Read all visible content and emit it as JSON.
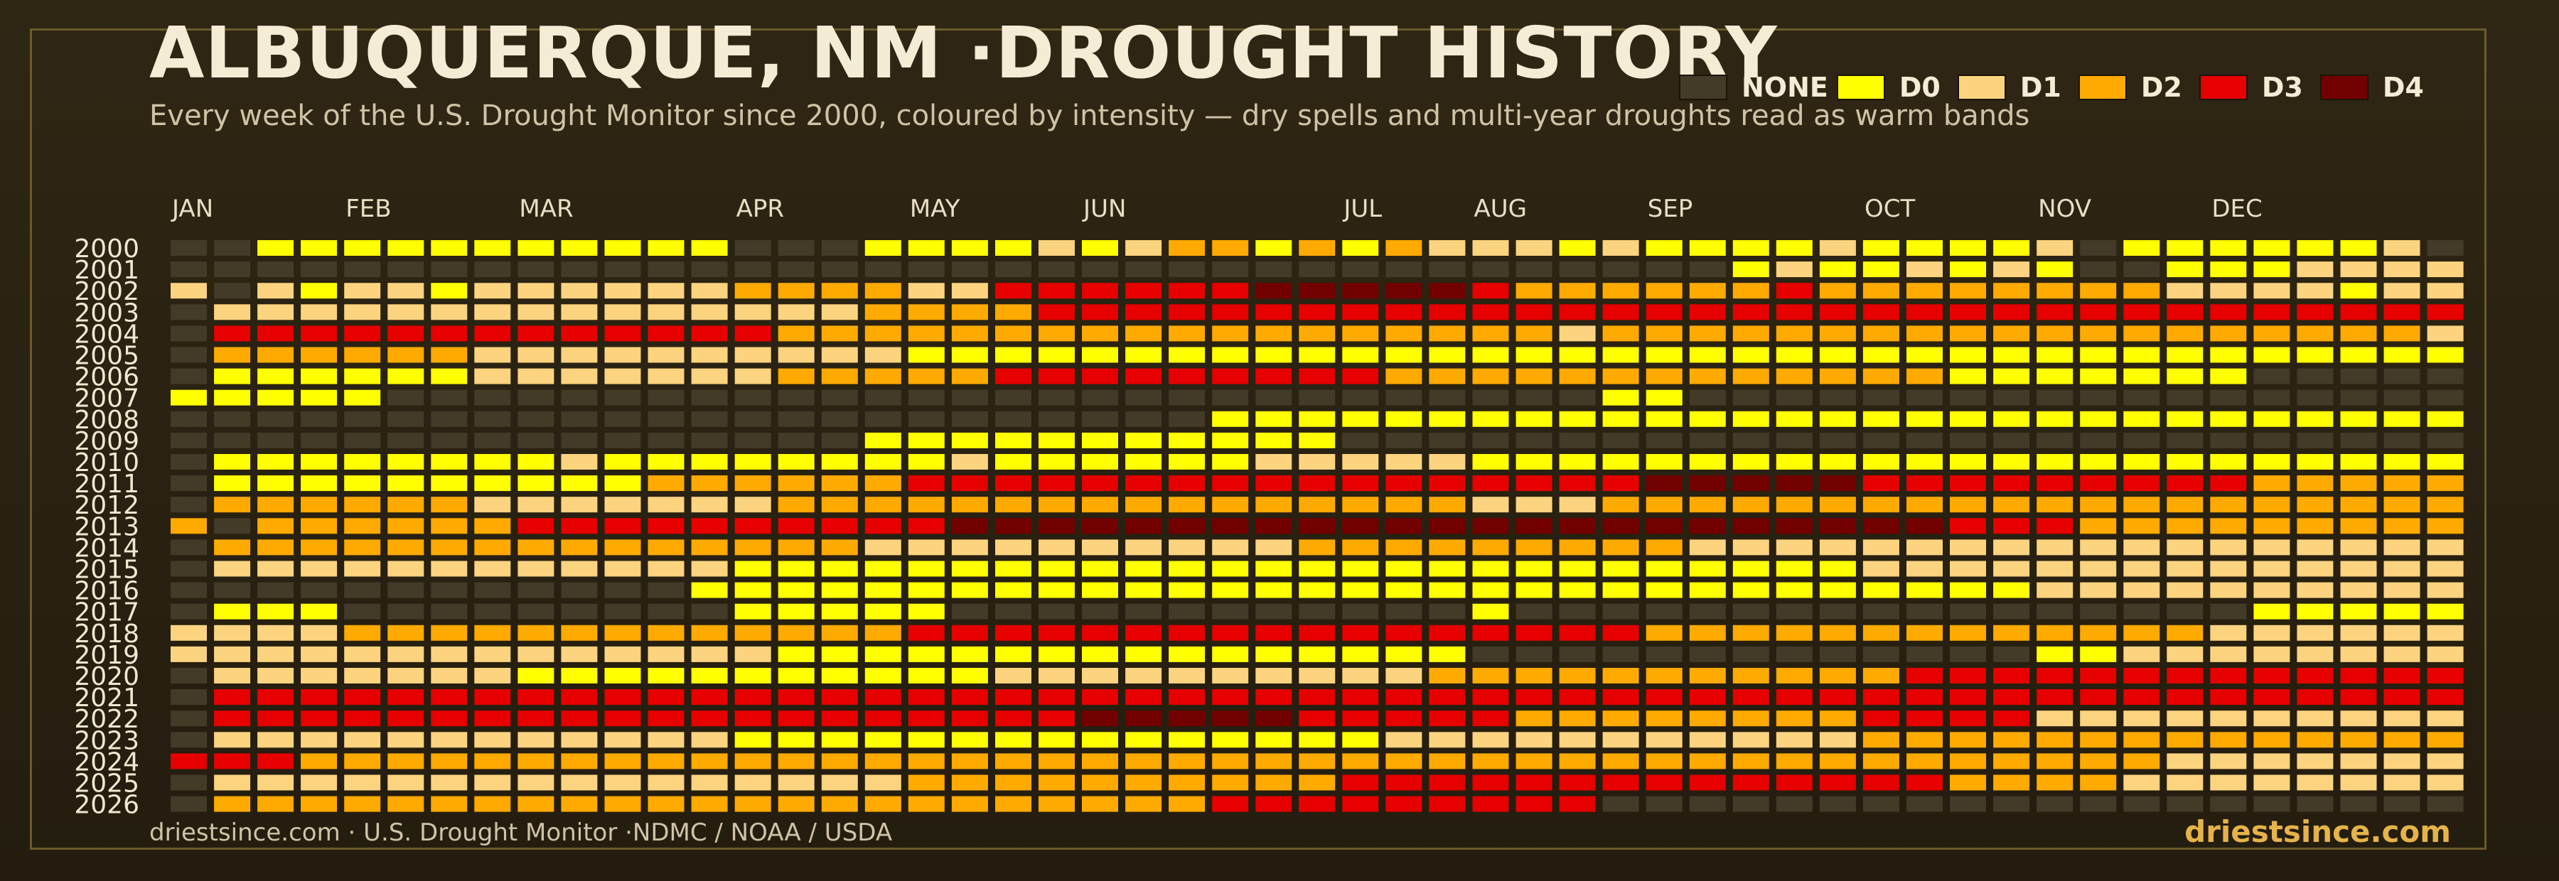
{
  "header": {
    "title": "ALBUQUERQUE, NM ·DROUGHT HISTORY",
    "subtitle": "Every week of the U.S. Drought Monitor since 2000, coloured by intensity — dry spells and multi-year droughts read as warm bands"
  },
  "footer": {
    "source": "driestsince.com  · U.S. Drought Monitor ·NDMC / NOAA / USDA",
    "brand": "driestsince.com"
  },
  "colors": {
    "NONE": "#433a28",
    "D0": "#ffff00",
    "D1": "#fcd37f",
    "D2": "#ffaa00",
    "D3": "#e60000",
    "D4": "#730000",
    "brand": "#e6b34a"
  },
  "legend": [
    {
      "key": "NONE",
      "label": "NONE"
    },
    {
      "key": "D0",
      "label": "D0"
    },
    {
      "key": "D1",
      "label": "D1"
    },
    {
      "key": "D2",
      "label": "D2"
    },
    {
      "key": "D3",
      "label": "D3"
    },
    {
      "key": "D4",
      "label": "D4"
    }
  ],
  "chart_data": {
    "type": "heatmap",
    "x_labels": [
      "JAN",
      "FEB",
      "MAR",
      "APR",
      "MAY",
      "JUN",
      "JUL",
      "AUG",
      "SEP",
      "OCT",
      "NOV",
      "DEC"
    ],
    "x_label_weeks": [
      0,
      4,
      8,
      13,
      17,
      21,
      27,
      30,
      34,
      39,
      43,
      47
    ],
    "weeks_per_year": 53,
    "categories": [
      "NONE",
      "D0",
      "D1",
      "D2",
      "D3",
      "D4"
    ],
    "rows": [
      {
        "year": "2000",
        "runs": [
          [
            "NONE",
            2
          ],
          [
            "D0",
            11
          ],
          [
            "NONE",
            3
          ],
          [
            "D0",
            4
          ],
          [
            "D1",
            1
          ],
          [
            "D0",
            1
          ],
          [
            "D1",
            1
          ],
          [
            "D2",
            2
          ],
          [
            "D0",
            1
          ],
          [
            "D2",
            1
          ],
          [
            "D0",
            1
          ],
          [
            "D2",
            1
          ],
          [
            "D1",
            3
          ],
          [
            "D0",
            1
          ],
          [
            "D1",
            1
          ],
          [
            "D0",
            4
          ],
          [
            "D1",
            1
          ],
          [
            "D0",
            4
          ],
          [
            "D1",
            1
          ],
          [
            "NONE",
            1
          ],
          [
            "D0",
            6
          ],
          [
            "D1",
            1
          ],
          [
            "NONE",
            2
          ]
        ]
      },
      {
        "year": "2001",
        "runs": [
          [
            "NONE",
            36
          ],
          [
            "D0",
            1
          ],
          [
            "D1",
            1
          ],
          [
            "D0",
            2
          ],
          [
            "D1",
            1
          ],
          [
            "D0",
            1
          ],
          [
            "D1",
            1
          ],
          [
            "D0",
            1
          ],
          [
            "NONE",
            2
          ],
          [
            "D0",
            3
          ],
          [
            "D1",
            4
          ],
          [
            "D0",
            2
          ],
          [
            "NONE",
            2
          ]
        ]
      },
      {
        "year": "2002",
        "runs": [
          [
            "D1",
            1
          ],
          [
            "NONE",
            1
          ],
          [
            "D1",
            1
          ],
          [
            "D0",
            1
          ],
          [
            "D1",
            2
          ],
          [
            "D0",
            1
          ],
          [
            "D1",
            6
          ],
          [
            "D2",
            4
          ],
          [
            "D1",
            2
          ],
          [
            "D3",
            6
          ],
          [
            "D4",
            5
          ],
          [
            "D3",
            1
          ],
          [
            "D2",
            6
          ],
          [
            "D3",
            1
          ],
          [
            "D2",
            8
          ],
          [
            "D1",
            4
          ],
          [
            "D0",
            1
          ],
          [
            "D1",
            2
          ]
        ]
      },
      {
        "year": "2003",
        "runs": [
          [
            "NONE",
            1
          ],
          [
            "D1",
            15
          ],
          [
            "D2",
            4
          ],
          [
            "D3",
            33
          ]
        ]
      },
      {
        "year": "2004",
        "runs": [
          [
            "NONE",
            1
          ],
          [
            "D3",
            13
          ],
          [
            "D2",
            18
          ],
          [
            "D1",
            1
          ],
          [
            "D2",
            19
          ],
          [
            "D1",
            1
          ]
        ]
      },
      {
        "year": "2005",
        "runs": [
          [
            "NONE",
            1
          ],
          [
            "D2",
            6
          ],
          [
            "D1",
            10
          ],
          [
            "D0",
            36
          ]
        ]
      },
      {
        "year": "2006",
        "runs": [
          [
            "NONE",
            1
          ],
          [
            "D0",
            6
          ],
          [
            "D1",
            7
          ],
          [
            "D2",
            5
          ],
          [
            "D3",
            9
          ],
          [
            "D2",
            13
          ],
          [
            "D0",
            7
          ],
          [
            "NONE",
            5
          ]
        ]
      },
      {
        "year": "2007",
        "runs": [
          [
            "D0",
            5
          ],
          [
            "NONE",
            28
          ],
          [
            "D0",
            2
          ],
          [
            "NONE",
            18
          ]
        ]
      },
      {
        "year": "2008",
        "runs": [
          [
            "NONE",
            24
          ],
          [
            "D0",
            29
          ]
        ]
      },
      {
        "year": "2009",
        "runs": [
          [
            "NONE",
            16
          ],
          [
            "D0",
            11
          ],
          [
            "NONE",
            26
          ]
        ]
      },
      {
        "year": "2010",
        "runs": [
          [
            "NONE",
            1
          ],
          [
            "D0",
            8
          ],
          [
            "D1",
            1
          ],
          [
            "D0",
            8
          ],
          [
            "D1",
            1
          ],
          [
            "D0",
            6
          ],
          [
            "D1",
            5
          ],
          [
            "D0",
            23
          ]
        ]
      },
      {
        "year": "2011",
        "runs": [
          [
            "NONE",
            1
          ],
          [
            "D0",
            3
          ],
          [
            "D0",
            7
          ],
          [
            "D2",
            6
          ],
          [
            "D3",
            17
          ],
          [
            "D4",
            5
          ],
          [
            "D3",
            9
          ],
          [
            "D2",
            5
          ]
        ]
      },
      {
        "year": "2012",
        "runs": [
          [
            "NONE",
            1
          ],
          [
            "D2",
            6
          ],
          [
            "D1",
            7
          ],
          [
            "D2",
            16
          ],
          [
            "D1",
            3
          ],
          [
            "D2",
            20
          ]
        ]
      },
      {
        "year": "2013",
        "runs": [
          [
            "D2",
            1
          ],
          [
            "NONE",
            1
          ],
          [
            "D2",
            6
          ],
          [
            "D3",
            10
          ],
          [
            "D4",
            23
          ],
          [
            "D3",
            3
          ],
          [
            "D2",
            9
          ]
        ]
      },
      {
        "year": "2014",
        "runs": [
          [
            "NONE",
            1
          ],
          [
            "D2",
            15
          ],
          [
            "D1",
            10
          ],
          [
            "D2",
            9
          ],
          [
            "D1",
            18
          ]
        ]
      },
      {
        "year": "2015",
        "runs": [
          [
            "NONE",
            1
          ],
          [
            "D1",
            12
          ],
          [
            "D0",
            26
          ],
          [
            "D1",
            14
          ]
        ]
      },
      {
        "year": "2016",
        "runs": [
          [
            "NONE",
            12
          ],
          [
            "D0",
            31
          ],
          [
            "D1",
            10
          ]
        ]
      },
      {
        "year": "2017",
        "runs": [
          [
            "NONE",
            1
          ],
          [
            "D0",
            3
          ],
          [
            "NONE",
            9
          ],
          [
            "D0",
            5
          ],
          [
            "NONE",
            12
          ],
          [
            "D0",
            1
          ],
          [
            "NONE",
            17
          ],
          [
            "D0",
            5
          ]
        ]
      },
      {
        "year": "2018",
        "runs": [
          [
            "D1",
            2
          ],
          [
            "D1",
            2
          ],
          [
            "D2",
            13
          ],
          [
            "D3",
            17
          ],
          [
            "D2",
            13
          ],
          [
            "D1",
            6
          ]
        ]
      },
      {
        "year": "2019",
        "runs": [
          [
            "D1",
            14
          ],
          [
            "D0",
            3
          ],
          [
            "D0",
            13
          ],
          [
            "NONE",
            13
          ],
          [
            "D0",
            2
          ],
          [
            "D1",
            8
          ]
        ]
      },
      {
        "year": "2020",
        "runs": [
          [
            "NONE",
            1
          ],
          [
            "D1",
            7
          ],
          [
            "D0",
            11
          ],
          [
            "D1",
            10
          ],
          [
            "D2",
            11
          ],
          [
            "D3",
            13
          ]
        ]
      },
      {
        "year": "2021",
        "runs": [
          [
            "NONE",
            1
          ],
          [
            "D3",
            52
          ]
        ]
      },
      {
        "year": "2022",
        "runs": [
          [
            "NONE",
            1
          ],
          [
            "D3",
            20
          ],
          [
            "D4",
            5
          ],
          [
            "D3",
            5
          ],
          [
            "D2",
            8
          ],
          [
            "D3",
            4
          ],
          [
            "D1",
            10
          ]
        ]
      },
      {
        "year": "2023",
        "runs": [
          [
            "NONE",
            1
          ],
          [
            "D1",
            12
          ],
          [
            "D0",
            15
          ],
          [
            "D1",
            11
          ],
          [
            "D2",
            14
          ]
        ]
      },
      {
        "year": "2024",
        "runs": [
          [
            "D3",
            3
          ],
          [
            "D2",
            28
          ],
          [
            "D2",
            15
          ],
          [
            "D1",
            7
          ]
        ]
      },
      {
        "year": "2025",
        "runs": [
          [
            "NONE",
            1
          ],
          [
            "D1",
            16
          ],
          [
            "D2",
            10
          ],
          [
            "D3",
            14
          ],
          [
            "D2",
            4
          ],
          [
            "D1",
            8
          ]
        ]
      },
      {
        "year": "2026",
        "runs": [
          [
            "NONE",
            1
          ],
          [
            "D2",
            23
          ],
          [
            "D3",
            9
          ],
          [
            "NONE",
            20
          ]
        ]
      }
    ]
  }
}
